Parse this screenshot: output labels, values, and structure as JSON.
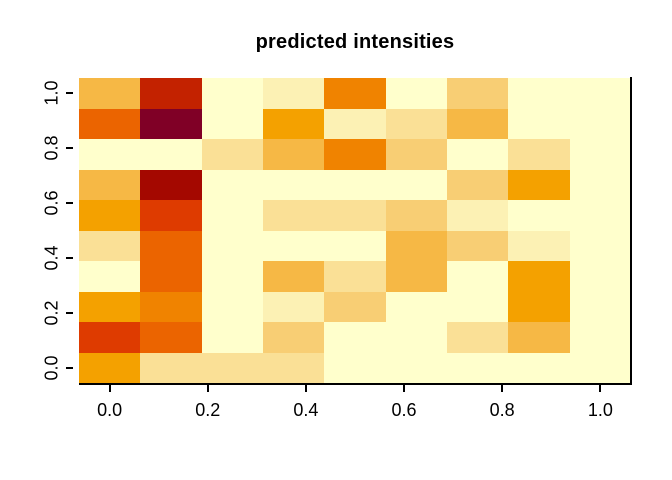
{
  "chart_data": {
    "type": "heatmap",
    "title": "predicted intensities",
    "xlabel": "",
    "ylabel": "",
    "x_ticks": [
      "0.0",
      "0.2",
      "0.4",
      "0.6",
      "0.8",
      "1.0"
    ],
    "y_ticks": [
      "0.0",
      "0.2",
      "0.4",
      "0.6",
      "0.8",
      "1.0"
    ],
    "xlim": [
      -0.0625,
      1.0625
    ],
    "ylim": [
      -0.0556,
      1.0556
    ],
    "n_cols": 9,
    "n_rows": 10,
    "x_values": [
      0,
      0.125,
      0.25,
      0.375,
      0.5,
      0.625,
      0.75,
      0.875,
      1.0
    ],
    "y_values": [
      0,
      0.111,
      0.222,
      0.333,
      0.444,
      0.556,
      0.667,
      0.778,
      0.889,
      1.0
    ],
    "grid_on": false,
    "legend": "none",
    "color_scale_low_to_high": [
      "#FFFFCC",
      "#FCF1B4",
      "#FAE096",
      "#F8CE74",
      "#F6B845",
      "#F4A100",
      "#F08300",
      "#EB6400",
      "#DE3B00",
      "#C32200",
      "#A40800",
      "#800026"
    ],
    "rows_top_to_bottom": [
      [
        "#F6B845",
        "#C32200",
        "#FFFFCC",
        "#FCF1B4",
        "#F08300",
        "#FFFFCC",
        "#F8CE74",
        "#FFFFCC",
        "#FFFFCC"
      ],
      [
        "#EB6400",
        "#800026",
        "#FFFFCC",
        "#F4A100",
        "#FCF1B4",
        "#FAE096",
        "#F6B845",
        "#FFFFCC",
        "#FFFFCC"
      ],
      [
        "#FFFFCC",
        "#FFFFCC",
        "#FAE096",
        "#F6B845",
        "#F08300",
        "#F8CE74",
        "#FFFFCC",
        "#FAE096",
        "#FFFFCC"
      ],
      [
        "#F6B845",
        "#A40800",
        "#FFFFCC",
        "#FFFFCC",
        "#FFFFCC",
        "#FFFFCC",
        "#F8CE74",
        "#F4A100",
        "#FFFFCC"
      ],
      [
        "#F4A100",
        "#DE3B00",
        "#FFFFCC",
        "#FAE096",
        "#FAE096",
        "#F8CE74",
        "#FCF1B4",
        "#FFFFCC",
        "#FFFFCC"
      ],
      [
        "#FAE096",
        "#EB6400",
        "#FFFFCC",
        "#FFFFCC",
        "#FFFFCC",
        "#F6B845",
        "#F8CE74",
        "#FCF1B4",
        "#FFFFCC"
      ],
      [
        "#FFFFCC",
        "#EB6400",
        "#FFFFCC",
        "#F6B845",
        "#FAE096",
        "#F6B845",
        "#FFFFCC",
        "#F4A100",
        "#FFFFCC"
      ],
      [
        "#F4A100",
        "#F08300",
        "#FFFFCC",
        "#FCF1B4",
        "#F8CE74",
        "#FFFFCC",
        "#FFFFCC",
        "#F4A100",
        "#FFFFCC"
      ],
      [
        "#DE3B00",
        "#EB6400",
        "#FFFFCC",
        "#F8CE74",
        "#FFFFCC",
        "#FFFFCC",
        "#FAE096",
        "#F6B845",
        "#FFFFCC"
      ],
      [
        "#F4A100",
        "#FAE096",
        "#FAE096",
        "#FAE096",
        "#FFFFCC",
        "#FFFFCC",
        "#FFFFCC",
        "#FFFFCC",
        "#FFFFCC"
      ]
    ],
    "axis_color": "#000000",
    "background_color": "#FFFFFF"
  }
}
